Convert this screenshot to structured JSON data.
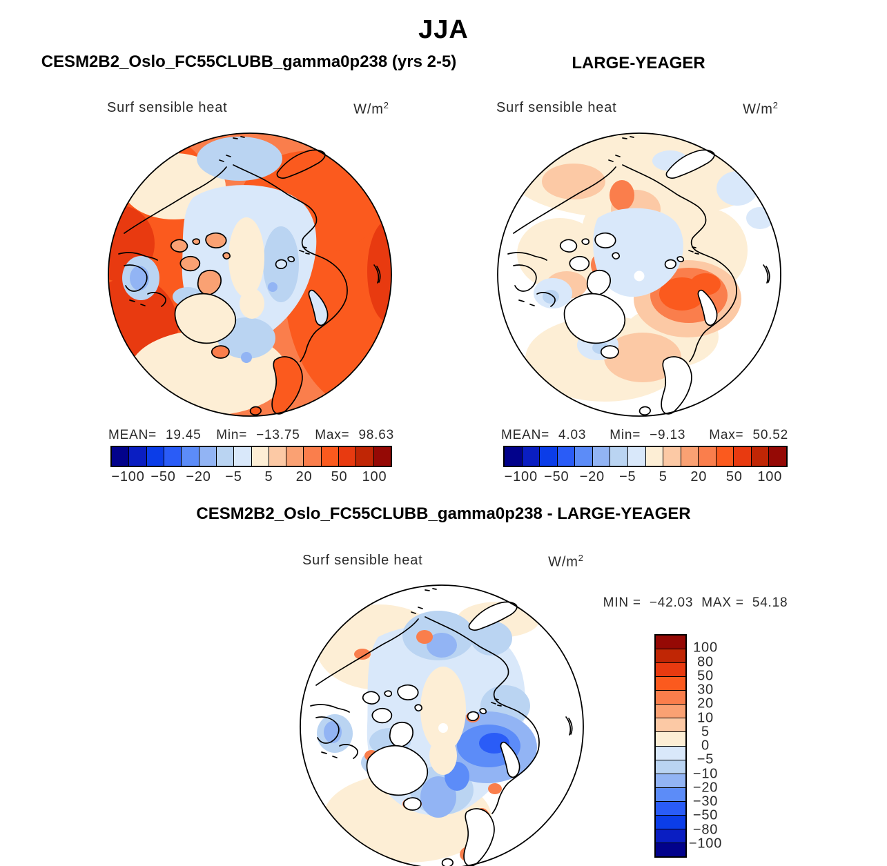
{
  "header": {
    "season": "JJA"
  },
  "panels": {
    "model": {
      "title": "CESM2B2_Oslo_FC55CLUBB_gamma0p238 (yrs 2-5)",
      "field_label": "Surf sensible heat",
      "units_base": "W/m",
      "units_exp": "2",
      "stats": {
        "mean_label": "MEAN=",
        "mean": "19.45",
        "min_label": "Min=",
        "min": "−13.75",
        "max_label": "Max=",
        "max": "98.63"
      }
    },
    "reference": {
      "title": "LARGE-YEAGER",
      "field_label": "Surf sensible heat",
      "units_base": "W/m",
      "units_exp": "2",
      "stats": {
        "mean_label": "MEAN=",
        "mean": "4.03",
        "min_label": "Min=",
        "min": "−9.13",
        "max_label": "Max=",
        "max": "50.52"
      }
    },
    "difference": {
      "title": "CESM2B2_Oslo_FC55CLUBB_gamma0p238 - LARGE-YEAGER",
      "field_label": "Surf sensible heat",
      "units_base": "W/m",
      "units_exp": "2",
      "stats": {
        "min_label": "MIN =",
        "min": "−42.03",
        "max_label": "MAX =",
        "max": "54.18"
      }
    }
  },
  "colorbar": {
    "palette": [
      "#02028B",
      "#0A1EC2",
      "#0B3DE8",
      "#2A5CF7",
      "#5C8CF8",
      "#92B4F4",
      "#BAD4F2",
      "#D9E8FA",
      "#FDEED5",
      "#FCC9A5",
      "#FAA173",
      "#FA7E4C",
      "#FB5A1E",
      "#E83A10",
      "#C02605",
      "#950905"
    ],
    "levels": [
      -100,
      -80,
      -50,
      -30,
      -20,
      -10,
      -5,
      0,
      5,
      10,
      20,
      30,
      50,
      80,
      100
    ],
    "h_tick_labels": [
      "−100",
      "−50",
      "−20",
      "−5",
      "5",
      "20",
      "50",
      "100"
    ],
    "v_tick_labels": [
      "100",
      "80",
      "50",
      "30",
      "20",
      "10",
      "5",
      "0",
      "−5",
      "−10",
      "−20",
      "−30",
      "−50",
      "−80",
      "−100"
    ]
  },
  "chart_data": [
    {
      "type": "heatmap",
      "subtype": "polar-stereographic-filled-contour-map",
      "title": "CESM2B2_Oslo_FC55CLUBB_gamma0p238 (yrs 2-5)",
      "season": "JJA",
      "variable": "Surf sensible heat",
      "units": "W/m2",
      "stats": {
        "mean": 19.45,
        "min": -13.75,
        "max": 98.63
      },
      "contour_levels": [
        -100,
        -80,
        -50,
        -30,
        -20,
        -10,
        -5,
        0,
        5,
        10,
        20,
        30,
        50,
        80,
        100
      ],
      "legend_position": "bottom",
      "description": "Arctic polar cap map; strong positive (orange/red) sensible heat over land around the basin, weakly negative/near-zero (pale blue) over the central Arctic Ocean."
    },
    {
      "type": "heatmap",
      "subtype": "polar-stereographic-filled-contour-map",
      "title": "LARGE-YEAGER",
      "season": "JJA",
      "variable": "Surf sensible heat",
      "units": "W/m2",
      "stats": {
        "mean": 4.03,
        "min": -9.13,
        "max": 50.52
      },
      "contour_levels": [
        -100,
        -80,
        -50,
        -30,
        -20,
        -10,
        -5,
        0,
        5,
        10,
        20,
        30,
        50,
        80,
        100
      ],
      "legend_position": "bottom",
      "description": "Ocean-only field (land masked white); weak positive values over most seas, stronger positive (orange) in the Barents/Kara region, weakly negative pale blue near the pole."
    },
    {
      "type": "heatmap",
      "subtype": "polar-stereographic-filled-contour-map",
      "title": "CESM2B2_Oslo_FC55CLUBB_gamma0p238 - LARGE-YEAGER",
      "season": "JJA",
      "variable": "Surf sensible heat",
      "units": "W/m2",
      "stats": {
        "min": -42.03,
        "max": 54.18
      },
      "contour_levels": [
        -100,
        -80,
        -50,
        -30,
        -20,
        -10,
        -5,
        0,
        5,
        10,
        20,
        30,
        50,
        80,
        100
      ],
      "legend_position": "right",
      "description": "Difference map (land masked white); negative (blue) differences over most of the Arctic Ocean, strongest in the Barents/Kara seas, with narrow positive (orange) fringes along coastlines."
    }
  ]
}
